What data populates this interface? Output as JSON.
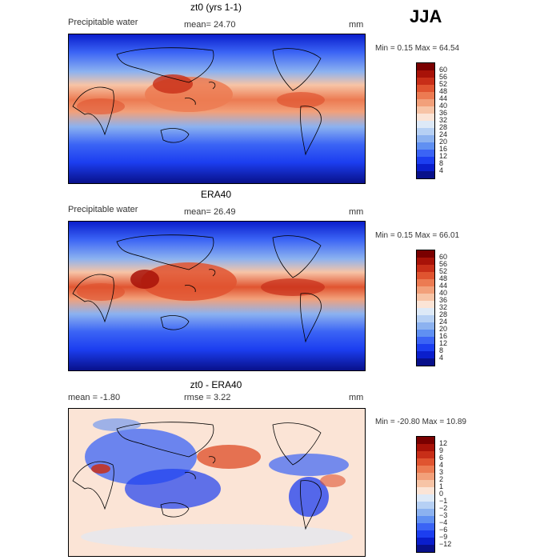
{
  "header": {
    "season": "JJA"
  },
  "panels": [
    {
      "title": "zt0 (yrs 1-1)",
      "left_label": "Precipitable water",
      "center_label": "mean=   24.70",
      "unit": "mm",
      "minmax": "Min =    0.15 Max =   64.54",
      "colorbar": {
        "colors": [
          "#08108a",
          "#0a1ecc",
          "#1c3ef0",
          "#3b64f5",
          "#6090f2",
          "#8cb2f0",
          "#b6d0f4",
          "#dde9f7",
          "#fbe4d6",
          "#f7c4a6",
          "#f2a07a",
          "#ec7b52",
          "#e05430",
          "#c82e18",
          "#a81208",
          "#7a0000"
        ],
        "labels": [
          "60",
          "56",
          "52",
          "48",
          "44",
          "40",
          "36",
          "32",
          "28",
          "24",
          "20",
          "16",
          "12",
          "8",
          "4"
        ]
      }
    },
    {
      "title": "ERA40",
      "left_label": "Precipitable water",
      "center_label": "mean=   26.49",
      "unit": "mm",
      "minmax": "Min =    0.15 Max =   66.01",
      "colorbar": {
        "colors": [
          "#08108a",
          "#0a1ecc",
          "#1c3ef0",
          "#3b64f5",
          "#6090f2",
          "#8cb2f0",
          "#b6d0f4",
          "#dde9f7",
          "#fbe4d6",
          "#f7c4a6",
          "#f2a07a",
          "#ec7b52",
          "#e05430",
          "#c82e18",
          "#a81208",
          "#7a0000"
        ],
        "labels": [
          "60",
          "56",
          "52",
          "48",
          "44",
          "40",
          "36",
          "32",
          "28",
          "24",
          "20",
          "16",
          "12",
          "8",
          "4"
        ]
      }
    },
    {
      "title": "zt0 - ERA40",
      "left_label": "mean =   -1.80",
      "center_label": "rmse =    3.22",
      "unit": "mm",
      "minmax": "Min = -20.80 Max =   10.89",
      "colorbar": {
        "colors": [
          "#08108a",
          "#0a1ecc",
          "#1c3ef0",
          "#3b64f5",
          "#6090f2",
          "#8cb2f0",
          "#b6d0f4",
          "#dde9f7",
          "#fbe4d6",
          "#f7c4a6",
          "#f2a07a",
          "#ec7b52",
          "#e05430",
          "#c82e18",
          "#a81208",
          "#7a0000"
        ],
        "labels": [
          "12",
          "9",
          "6",
          "4",
          "3",
          "2",
          "1",
          "0",
          "−1",
          "−2",
          "−3",
          "−4",
          "−6",
          "−9",
          "−12"
        ]
      }
    }
  ]
}
